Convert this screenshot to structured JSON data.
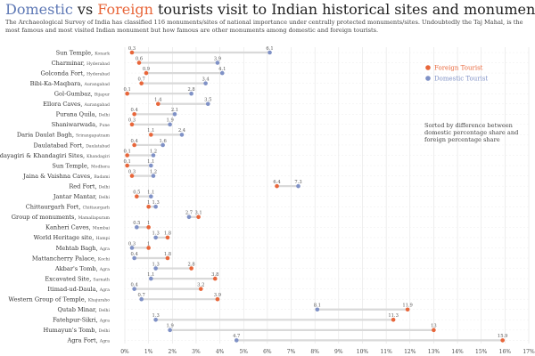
{
  "header": {
    "title_domestic": "Domestic",
    "title_vs": " vs ",
    "title_foreign": "Foreign",
    "title_rest": " tourists visit to Indian historical sites and monuments",
    "subtitle": "The Archaeological Survey of India has classified 116 monuments/sites of national importance under centrally protected monuments/sites. Undoubtedly the Taj Mahal, is the most famous and most visited Indian monument but how famous are other monuments among domestic and foreign tourists."
  },
  "colors": {
    "foreign": "#e8663a",
    "domestic": "#7f91c6",
    "connector": "#d9d9d9",
    "grid": "#e3e3e3"
  },
  "legend": {
    "foreign_label": "Foreign Tourist",
    "domestic_label": "Domestic Tourist"
  },
  "note": {
    "line1": "Sorted by difference between",
    "line2": "domestic percentage share and",
    "line3": "foreign percentage  share"
  },
  "chart_data": {
    "type": "dumbbell",
    "x_unit": "%",
    "xlim": [
      0,
      17
    ],
    "x_ticks": [
      "0%",
      "1%",
      "2%",
      "3%",
      "4%",
      "5%",
      "6%",
      "7%",
      "8%",
      "9%",
      "10%",
      "11%",
      "12%",
      "13%",
      "14%",
      "15%",
      "16%",
      "17%"
    ],
    "rows": [
      {
        "name": "Sun Temple",
        "sub": "Konark",
        "foreign": 0.3,
        "domestic": 6.1
      },
      {
        "name": "Charminar",
        "sub": "Hyderabad",
        "foreign": 0.6,
        "domestic": 3.9
      },
      {
        "name": "Golconda Fort",
        "sub": "Hyderabad",
        "foreign": 0.9,
        "domestic": 4.1
      },
      {
        "name": "Bibi-Ka-Maqbara",
        "sub": "Aurangabad",
        "foreign": 0.7,
        "domestic": 3.4
      },
      {
        "name": "Gol-Gumbaz",
        "sub": "Bijapur",
        "foreign": 0.1,
        "domestic": 2.8
      },
      {
        "name": "Ellora Caves",
        "sub": "Aurangabad",
        "foreign": 1.4,
        "domestic": 3.5
      },
      {
        "name": "Purana Quila",
        "sub": "Delhi",
        "foreign": 0.4,
        "domestic": 2.1
      },
      {
        "name": "Shaniwarwada",
        "sub": "Pune",
        "foreign": 0.3,
        "domestic": 1.9
      },
      {
        "name": "Daria Daulat Bagh",
        "sub": "Srirangapatnam",
        "foreign": 1.1,
        "domestic": 2.4
      },
      {
        "name": "Daulatabad Fort",
        "sub": "Daulatabad",
        "foreign": 0.4,
        "domestic": 1.6
      },
      {
        "name": "Udayagiri & Khandagiri Sites",
        "sub": "Khandagiri",
        "foreign": 0.1,
        "domestic": 1.2
      },
      {
        "name": "Sun Temple",
        "sub": "Modhera",
        "foreign": 0.1,
        "domestic": 1.1
      },
      {
        "name": "Jaina & Vaishna Caves",
        "sub": "Badami",
        "foreign": 0.3,
        "domestic": 1.2
      },
      {
        "name": "Red Fort",
        "sub": "Delhi",
        "foreign": 6.4,
        "domestic": 7.3
      },
      {
        "name": "Jantar Mantar",
        "sub": "Delhi",
        "foreign": 0.5,
        "domestic": 1.1
      },
      {
        "name": "Chittaurgarh Fort",
        "sub": "Chittaurgarh",
        "foreign": 1.0,
        "domestic": 1.3
      },
      {
        "name": "Group of monuments",
        "sub": "Mamallapuram",
        "foreign": 3.1,
        "domestic": 2.7
      },
      {
        "name": "Kanheri Caves",
        "sub": "Mumbai",
        "foreign": 1.0,
        "domestic": 0.5
      },
      {
        "name": "World Heritage site",
        "sub": "Hampi",
        "foreign": 1.8,
        "domestic": 1.3
      },
      {
        "name": "Mehtab Bagh",
        "sub": "Agra",
        "foreign": 1.0,
        "domestic": 0.3
      },
      {
        "name": "Mattancherry Palace",
        "sub": "Kochi",
        "foreign": 1.8,
        "domestic": 0.4
      },
      {
        "name": "Akbar's Tomb",
        "sub": "Agra",
        "foreign": 2.8,
        "domestic": 1.3
      },
      {
        "name": "Excavated Site",
        "sub": "Sarnath",
        "foreign": 3.8,
        "domestic": 1.1
      },
      {
        "name": "Itimad-ud-Daula",
        "sub": "Agra",
        "foreign": 3.2,
        "domestic": 0.4
      },
      {
        "name": "Western Group of Temple",
        "sub": "Khajuraho",
        "foreign": 3.9,
        "domestic": 0.7
      },
      {
        "name": "Qutab Minar",
        "sub": "Delhi",
        "foreign": 11.9,
        "domestic": 8.1
      },
      {
        "name": "Fatehpur-Sikri",
        "sub": "Agra",
        "foreign": 11.3,
        "domestic": 1.3
      },
      {
        "name": "Humayun's Tomb",
        "sub": "Delhi",
        "foreign": 13.0,
        "domestic": 1.9
      },
      {
        "name": "Agra Fort",
        "sub": "Agra",
        "foreign": 15.9,
        "domestic": 4.7
      }
    ]
  }
}
